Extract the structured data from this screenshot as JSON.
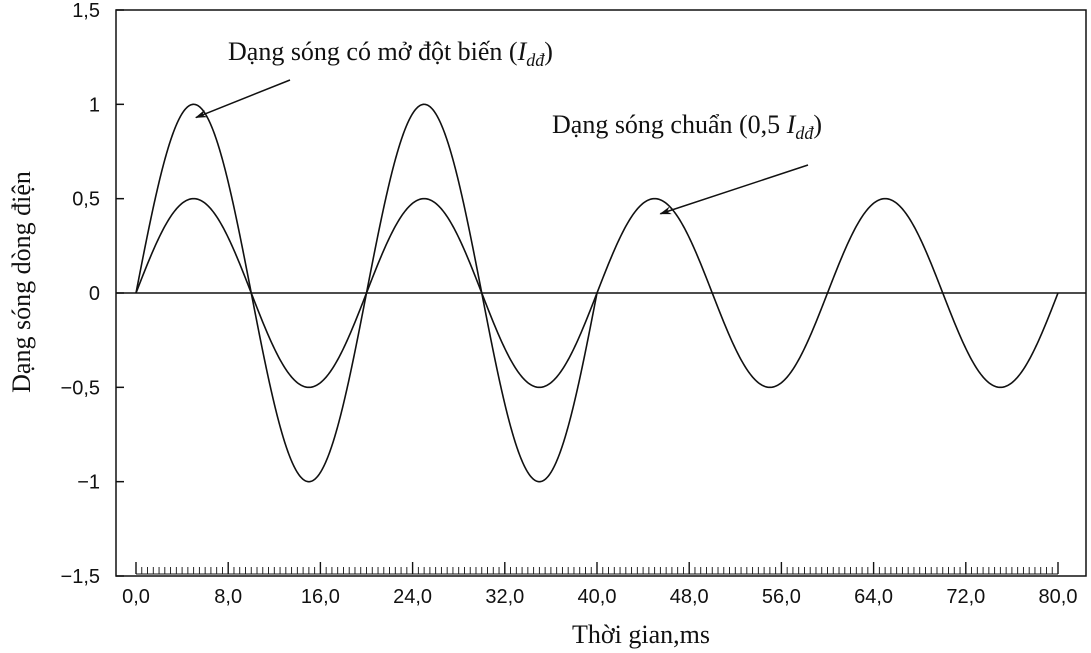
{
  "chart_data": {
    "type": "line",
    "title": "",
    "xlabel": "Thời gian,ms",
    "ylabel": "Dạng sóng dòng điện",
    "xlim": [
      0,
      80
    ],
    "ylim": [
      -1.5,
      1.5
    ],
    "grid": false,
    "x_ticks": [
      0,
      8,
      16,
      24,
      32,
      40,
      48,
      56,
      64,
      72,
      80
    ],
    "x_tick_labels": [
      "0,0",
      "8,0",
      "16,0",
      "24,0",
      "32,0",
      "40,0",
      "48,0",
      "56,0",
      "64,0",
      "72,0",
      "80,0"
    ],
    "y_ticks": [
      -1.5,
      -1,
      -0.5,
      0,
      0.5,
      1,
      1.5
    ],
    "y_tick_labels": [
      "−1,5",
      "−1",
      "−0,5",
      "0",
      "0,5",
      "1",
      "1,5"
    ],
    "series": [
      {
        "name": "Dạng sóng có mở đột biến (Iđđ)",
        "color": "#111111",
        "x": [
          0,
          1,
          2,
          3,
          4,
          5,
          6,
          7,
          8,
          9,
          10,
          11,
          12,
          13,
          14,
          15,
          16,
          17,
          18,
          19,
          20,
          21,
          22,
          23,
          24,
          25,
          26,
          27,
          28,
          29,
          30,
          31,
          32,
          33,
          34,
          35,
          36,
          37,
          38,
          39,
          40
        ],
        "y": [
          0,
          0.31,
          0.59,
          0.81,
          0.95,
          1,
          0.95,
          0.81,
          0.59,
          0.31,
          0,
          -0.31,
          -0.59,
          -0.81,
          -0.95,
          -1,
          -0.95,
          -0.81,
          -0.59,
          -0.31,
          0,
          0.31,
          0.59,
          0.81,
          0.95,
          1,
          0.95,
          0.81,
          0.59,
          0.31,
          0,
          -0.31,
          -0.59,
          -0.81,
          -0.95,
          -1,
          -0.95,
          -0.81,
          -0.59,
          -0.31,
          0
        ]
      },
      {
        "name": "Dạng sóng chuẩn (0,5 Iđđ)",
        "color": "#111111",
        "x": [
          0,
          1,
          2,
          3,
          4,
          5,
          6,
          7,
          8,
          9,
          10,
          11,
          12,
          13,
          14,
          15,
          16,
          17,
          18,
          19,
          20,
          21,
          22,
          23,
          24,
          25,
          26,
          27,
          28,
          29,
          30,
          31,
          32,
          33,
          34,
          35,
          36,
          37,
          38,
          39,
          40,
          41,
          42,
          43,
          44,
          45,
          46,
          47,
          48,
          49,
          50,
          51,
          52,
          53,
          54,
          55,
          56,
          57,
          58,
          59,
          60,
          61,
          62,
          63,
          64,
          65,
          66,
          67,
          68,
          69,
          70,
          71,
          72,
          73,
          74,
          75,
          76,
          77,
          78,
          79,
          80
        ],
        "y": [
          0,
          0.155,
          0.294,
          0.405,
          0.476,
          0.5,
          0.476,
          0.405,
          0.294,
          0.155,
          0,
          -0.155,
          -0.294,
          -0.405,
          -0.476,
          -0.5,
          -0.476,
          -0.405,
          -0.294,
          -0.155,
          0,
          0.155,
          0.294,
          0.405,
          0.476,
          0.5,
          0.476,
          0.405,
          0.294,
          0.155,
          0,
          -0.155,
          -0.294,
          -0.405,
          -0.476,
          -0.5,
          -0.476,
          -0.405,
          -0.294,
          -0.155,
          0,
          0.155,
          0.294,
          0.405,
          0.476,
          0.5,
          0.476,
          0.405,
          0.294,
          0.155,
          0,
          -0.155,
          -0.294,
          -0.405,
          -0.476,
          -0.5,
          -0.476,
          -0.405,
          -0.294,
          -0.155,
          0,
          0.155,
          0.294,
          0.405,
          0.476,
          0.5,
          0.476,
          0.405,
          0.294,
          0.155,
          0,
          -0.155,
          -0.294,
          -0.405,
          -0.476,
          -0.5,
          -0.476,
          -0.405,
          -0.294,
          -0.155,
          0
        ]
      }
    ],
    "annotations": [
      {
        "text": "Dạng sóng có mở đột biến (",
        "symbol": "I",
        "subscript": "dđ",
        "close": ")",
        "arrow_target": [
          5.2,
          0.93
        ]
      },
      {
        "text": "Dạng sóng chuẩn (0,5 ",
        "symbol": "I",
        "subscript": "dđ",
        "close": ")",
        "arrow_target": [
          45.5,
          0.42
        ]
      }
    ]
  }
}
